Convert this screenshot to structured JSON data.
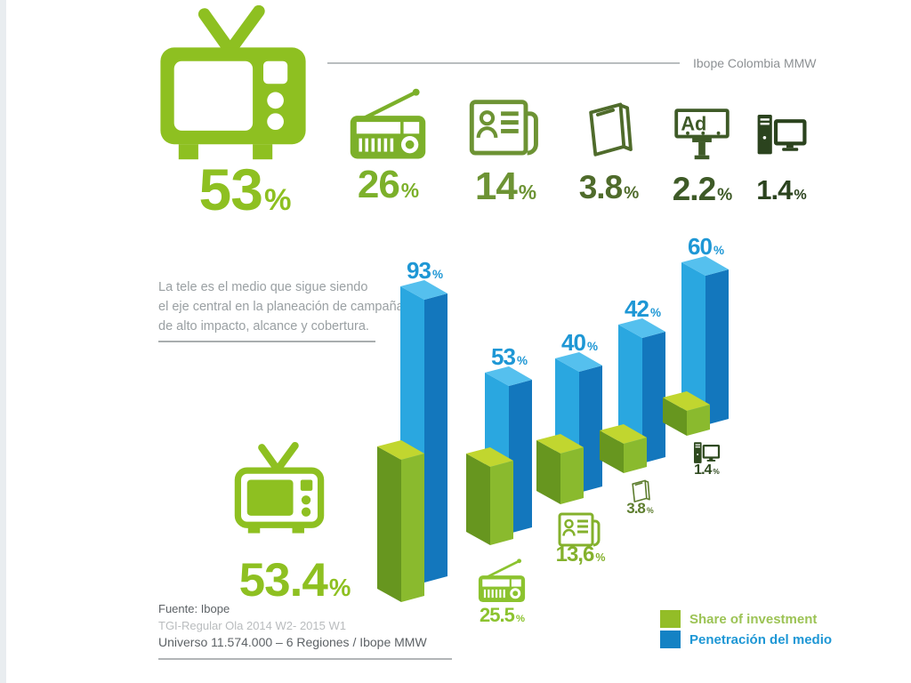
{
  "header": {
    "source_label": "Ibope Colombia MMW",
    "tv": {
      "value": "53",
      "unit": "%",
      "color": "#8ec021"
    }
  },
  "top_row": {
    "billboard_text": "Ad",
    "items": [
      {
        "id": "radio",
        "icon": "radio-icon",
        "value": "26",
        "unit": "%",
        "color": "#7cb02a"
      },
      {
        "id": "newspaper",
        "icon": "newspaper-icon",
        "value": "14",
        "unit": "%",
        "color": "#6d9334"
      },
      {
        "id": "magazine",
        "icon": "magazine-icon",
        "value": "3.8",
        "unit": "%",
        "color": "#4f6b2b"
      },
      {
        "id": "billboard",
        "icon": "billboard-icon",
        "value": "2.2",
        "unit": "%",
        "color": "#3e5a27"
      },
      {
        "id": "computer",
        "icon": "computer-icon",
        "value": "1.4",
        "unit": "%",
        "color": "#2b431e"
      }
    ]
  },
  "intro": {
    "line1": "La tele es el medio que sigue siendo",
    "line2": "el eje central en la planeación de campañas",
    "line3": "de alto impacto, alcance y cobertura."
  },
  "highlight": {
    "value": "53.4",
    "unit": "%",
    "color": "#8ec021"
  },
  "chart_data": {
    "type": "bar",
    "categories": [
      "TV",
      "Radio",
      "Prensa",
      "Revistas",
      "Internet"
    ],
    "series": [
      {
        "name": "Share of investment",
        "color": "#8aba2e",
        "values": [
          53.4,
          25.5,
          13.6,
          3.8,
          1.4
        ],
        "display_labels": [
          "53.4%",
          "25.5%",
          "13,6%",
          "3.8%",
          "1.4%"
        ]
      },
      {
        "name": "Penetración del medio",
        "color": "#29a3dd",
        "values": [
          93,
          53,
          40,
          42,
          60
        ],
        "display_labels": [
          "93%",
          "53%",
          "40%",
          "42%",
          "60%"
        ]
      }
    ],
    "ylabel": "",
    "xlabel": "",
    "grid": false,
    "legend_position": "bottom-right"
  },
  "column_annotations": [
    {
      "category": "Radio",
      "icon": "radio-icon",
      "label": "25.5",
      "unit": "%",
      "color": "#8cc32f"
    },
    {
      "category": "Prensa",
      "icon": "newspaper-icon",
      "label": "13,6",
      "unit": "%",
      "color": "#84b12c"
    },
    {
      "category": "Revistas",
      "icon": "magazine-icon",
      "label": "3.8",
      "unit": "%",
      "color": "#5d7d2e"
    },
    {
      "category": "Internet",
      "icon": "computer-icon",
      "label": "1.4",
      "unit": "%",
      "color": "#2f4a1f"
    }
  ],
  "legend": {
    "share": {
      "label": "Share of investment",
      "swatch": "#93bd27",
      "text_color": "#9cc355"
    },
    "penetration": {
      "label": "Penetración del medio",
      "swatch": "#1482c4",
      "text_color": "#1e97d5"
    }
  },
  "footer": {
    "line1": "Fuente: Ibope",
    "line2": "TGI-Regular Ola 2014 W2- 2015 W1",
    "line3": "Universo 11.574.000 – 6 Regiones / Ibope MMW"
  }
}
